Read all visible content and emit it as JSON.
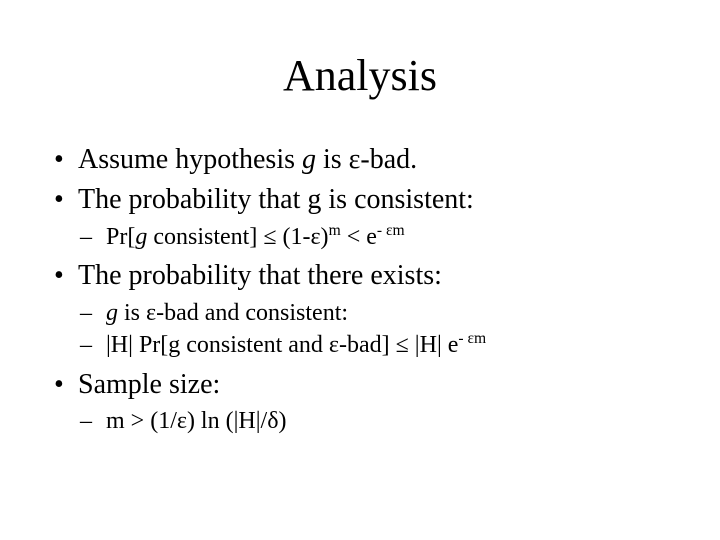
{
  "title": "Analysis",
  "colors": {
    "background": "#ffffff",
    "text": "#000000",
    "bullet": "#000000"
  },
  "typography": {
    "family": "Times New Roman",
    "title_fontsize": 44,
    "lvl1_fontsize": 28,
    "lvl2_fontsize": 24
  },
  "bullets": [
    {
      "parts": [
        {
          "t": "Assume hypothesis "
        },
        {
          "t": "g",
          "italic": true
        },
        {
          "t": " is ε-bad."
        }
      ]
    },
    {
      "parts": [
        {
          "t": "The probability that g is consistent:"
        }
      ],
      "sub": [
        {
          "parts": [
            {
              "t": "Pr["
            },
            {
              "t": "g",
              "italic": true
            },
            {
              "t": " consistent] ≤ (1-ε)"
            },
            {
              "t": "m",
              "sup": true
            },
            {
              "t": " < e"
            },
            {
              "t": "- εm",
              "sup": true
            }
          ]
        }
      ]
    },
    {
      "parts": [
        {
          "t": "The probability that there exists:"
        }
      ],
      "sub": [
        {
          "parts": [
            {
              "t": "g",
              "italic": true
            },
            {
              "t": " is ε-bad and consistent:"
            }
          ]
        },
        {
          "parts": [
            {
              "t": "|H| Pr[g consistent and ε-bad] ≤ |H| e"
            },
            {
              "t": "- εm",
              "sup": true
            }
          ]
        }
      ]
    },
    {
      "parts": [
        {
          "t": "Sample size:"
        }
      ],
      "sub": [
        {
          "parts": [
            {
              "t": "m > (1/ε) ln (|H|/δ)"
            }
          ]
        }
      ]
    }
  ]
}
